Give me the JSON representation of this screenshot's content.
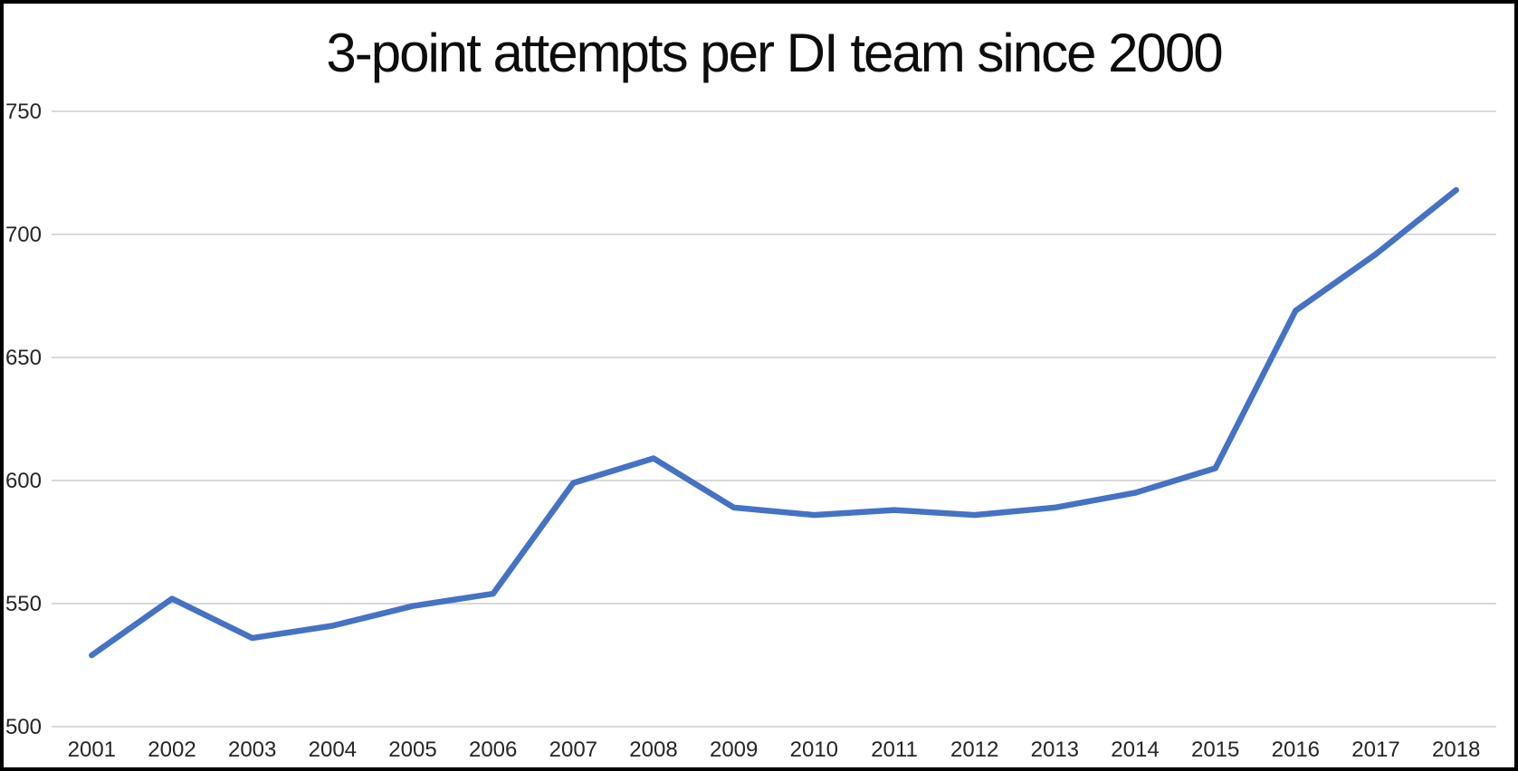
{
  "window": {
    "background": "#ffffff",
    "frame_border_color": "#000000"
  },
  "chart_data": {
    "type": "line",
    "title": "3-point attempts per DI team since 2000",
    "categories": [
      "2001",
      "2002",
      "2003",
      "2004",
      "2005",
      "2006",
      "2007",
      "2008",
      "2009",
      "2010",
      "2011",
      "2012",
      "2013",
      "2014",
      "2015",
      "2016",
      "2017",
      "2018"
    ],
    "series": [
      {
        "name": "3-point attempts per DI team",
        "values": [
          529,
          552,
          536,
          541,
          549,
          554,
          599,
          609,
          589,
          586,
          588,
          586,
          589,
          595,
          605,
          669,
          692,
          718
        ]
      }
    ],
    "xlabel": "",
    "ylabel": "",
    "ylim": [
      500,
      750
    ],
    "y_ticks": [
      500,
      550,
      600,
      650,
      700,
      750
    ],
    "grid": "horizontal",
    "legend_position": "none",
    "colors": {
      "line": "#4472C4",
      "gridline": "#D9D9D9",
      "tick_label": "#262626",
      "title": "#0d0d0d"
    }
  }
}
